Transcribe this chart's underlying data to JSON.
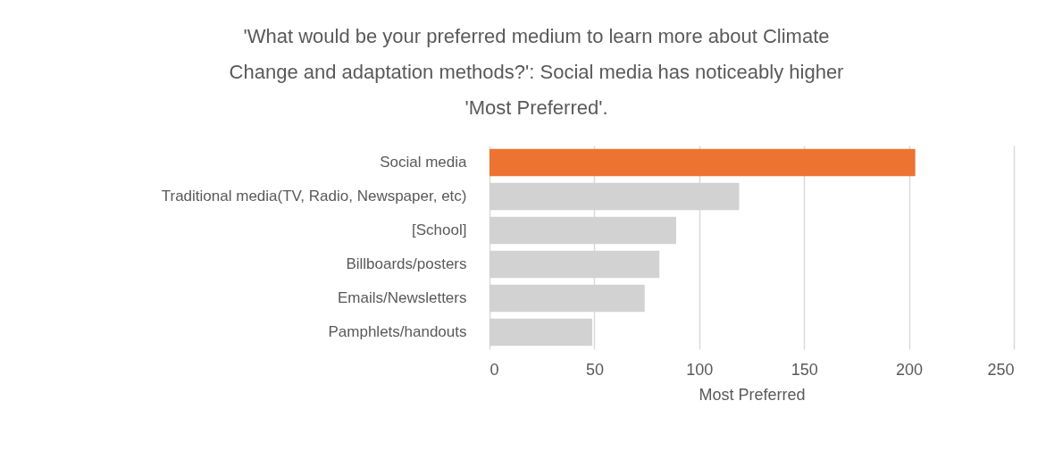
{
  "chart_data": {
    "type": "bar",
    "orientation": "horizontal",
    "title": [
      "'What would be your preferred medium to learn more about Climate",
      "Change and adaptation methods?': Social media has noticeably higher",
      "'Most Preferred'."
    ],
    "xlabel": "Most Preferred",
    "categories": [
      "Social media",
      "Traditional media(TV, Radio, Newspaper, etc)",
      "[School]",
      "Billboards/posters",
      "Emails/Newsletters",
      "Pamphlets/handouts"
    ],
    "values": [
      203,
      119,
      89,
      81,
      74,
      49
    ],
    "colors": [
      "#ed7331",
      "#d2d2d2",
      "#d2d2d2",
      "#d2d2d2",
      "#d2d2d2",
      "#d2d2d2"
    ],
    "xlim": [
      0,
      250
    ],
    "xticks": [
      0,
      50,
      100,
      150,
      200,
      250
    ],
    "grid": "x"
  }
}
